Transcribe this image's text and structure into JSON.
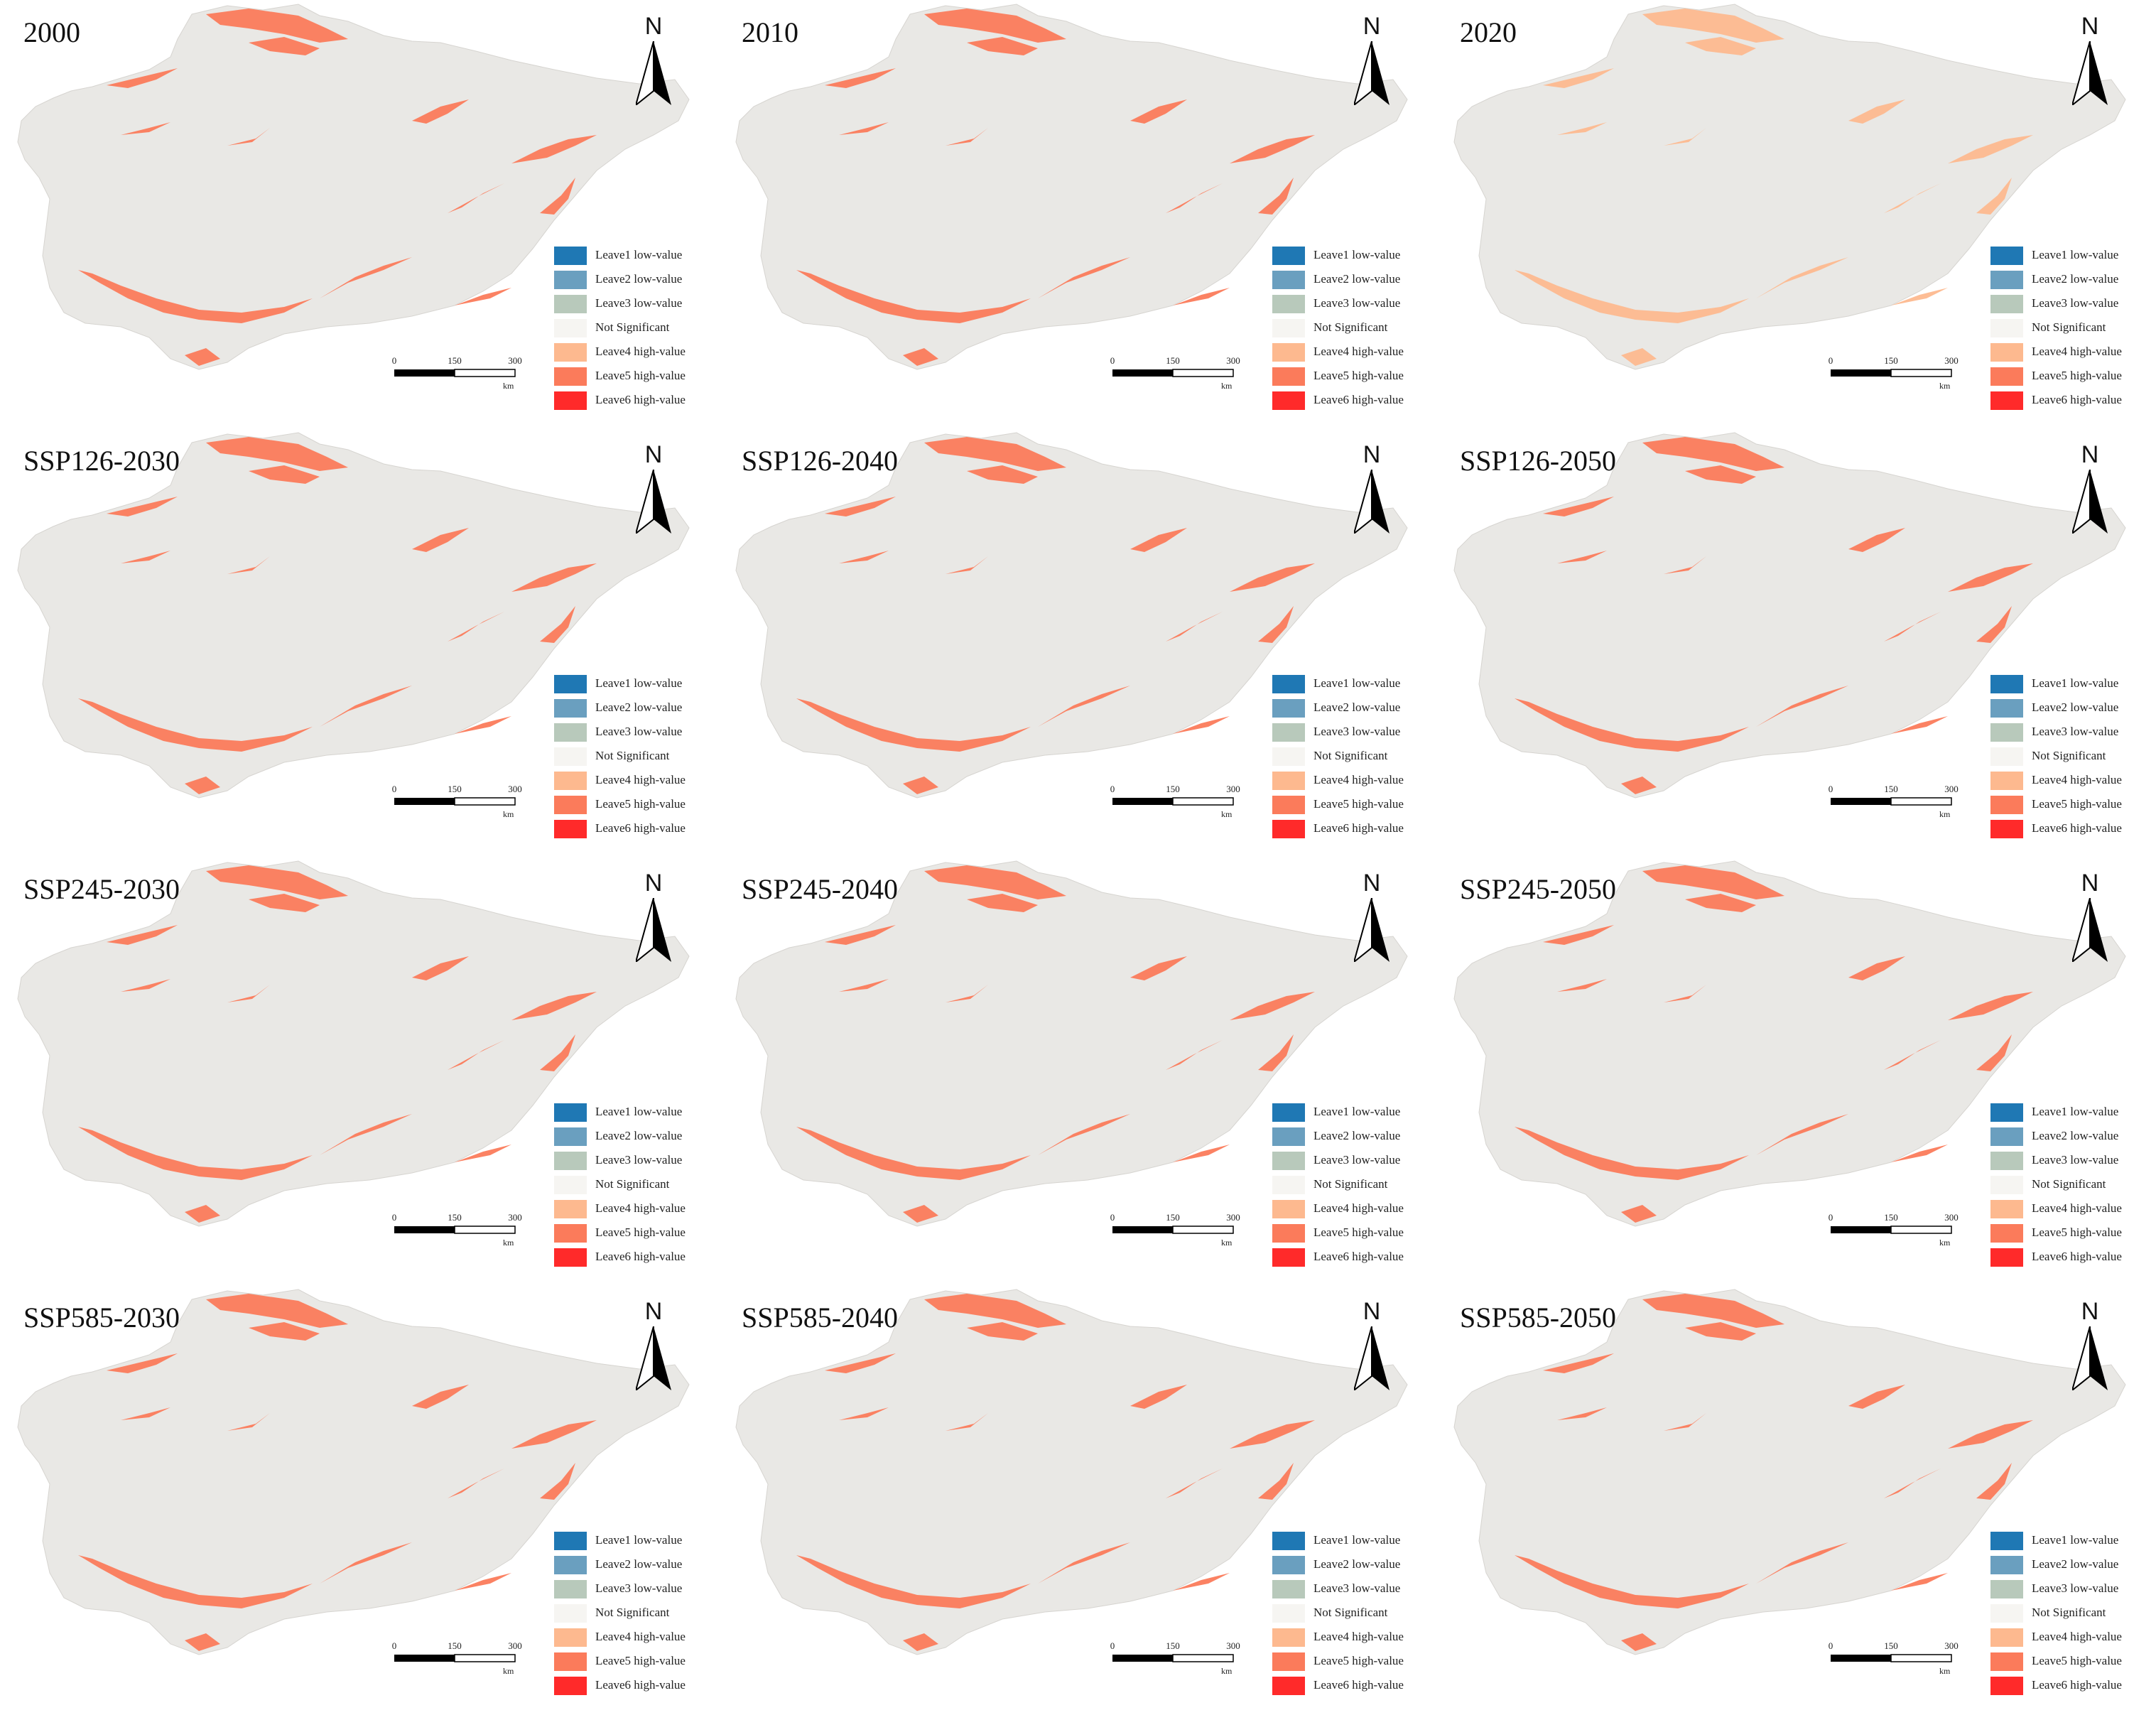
{
  "colors": {
    "background_region": "#e9e8e5",
    "leave1": "#1f78b4",
    "leave2": "#6a9fbf",
    "leave3": "#b8c9bb",
    "not_significant": "#f6f5f2",
    "leave4": "#fdb98f",
    "leave5": "#fb7b5b",
    "leave6": "#ff2a2a"
  },
  "north_label": "N",
  "scale": {
    "ticks": [
      "0",
      "150",
      "300"
    ],
    "unit": "km"
  },
  "legend": [
    {
      "label": "Leave1 low-value",
      "color_key": "leave1"
    },
    {
      "label": "Leave2 low-value",
      "color_key": "leave2"
    },
    {
      "label": "Leave3 low-value",
      "color_key": "leave3"
    },
    {
      "label": "Not Significant",
      "color_key": "not_significant"
    },
    {
      "label": "Leave4 high-value",
      "color_key": "leave4"
    },
    {
      "label": "Leave5 high-value",
      "color_key": "leave5"
    },
    {
      "label": "Leave6 high-value",
      "color_key": "leave6"
    }
  ],
  "panels": [
    {
      "title": "2000",
      "dominant": "leave5"
    },
    {
      "title": "2010",
      "dominant": "leave5"
    },
    {
      "title": "2020",
      "dominant": "leave4"
    },
    {
      "title": "SSP126-2030",
      "dominant": "leave5"
    },
    {
      "title": "SSP126-2040",
      "dominant": "leave5"
    },
    {
      "title": "SSP126-2050",
      "dominant": "leave5"
    },
    {
      "title": "SSP245-2030",
      "dominant": "leave5"
    },
    {
      "title": "SSP245-2040",
      "dominant": "leave5"
    },
    {
      "title": "SSP245-2050",
      "dominant": "leave5"
    },
    {
      "title": "SSP585-2030",
      "dominant": "leave5"
    },
    {
      "title": "SSP585-2040",
      "dominant": "leave5"
    },
    {
      "title": "SSP585-2050",
      "dominant": "leave5"
    }
  ]
}
